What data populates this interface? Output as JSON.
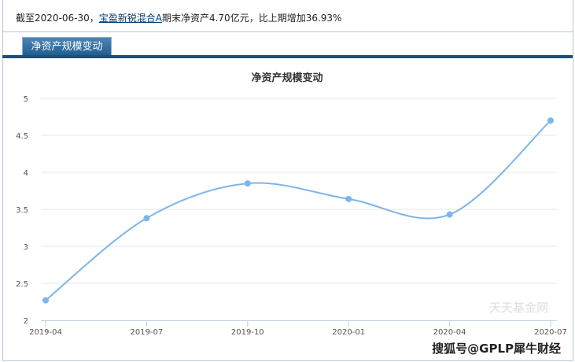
{
  "info": {
    "prefix": "截至2020-06-30，",
    "fund_link": "宝盈新锐混合A",
    "suffix": "期末净资产4.70亿元，比上期增加36.93%"
  },
  "tab": {
    "label": "净资产规模变动"
  },
  "watermark": "天天基金网",
  "source_watermark": "搜狐号@GPLP犀牛财经",
  "colors": {
    "line": "#7cb5ec",
    "tab": "#2a6699"
  },
  "chart_data": {
    "type": "line",
    "title": "净资产规模变动",
    "categories": [
      "2019-04",
      "2019-07",
      "2019-10",
      "2020-01",
      "2020-04",
      "2020-07"
    ],
    "values": [
      2.27,
      3.38,
      3.85,
      3.64,
      3.43,
      4.7
    ],
    "ylim": [
      2,
      5
    ],
    "yticks": [
      "2",
      "2.5",
      "3",
      "3.5",
      "4",
      "4.5",
      "5"
    ],
    "grid": true,
    "smooth": true
  }
}
